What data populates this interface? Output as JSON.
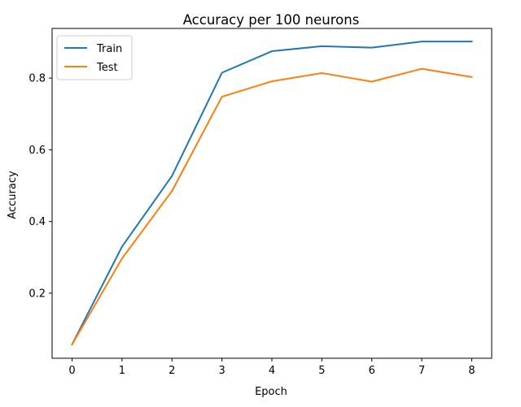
{
  "chart_data": {
    "type": "line",
    "title": "Accuracy per 100 neurons",
    "xlabel": "Epoch",
    "ylabel": "Accuracy",
    "x": [
      0,
      1,
      2,
      3,
      4,
      5,
      6,
      7,
      8
    ],
    "xticks": [
      "0",
      "1",
      "2",
      "3",
      "4",
      "5",
      "6",
      "7",
      "8"
    ],
    "yticks": [
      "0.2",
      "0.4",
      "0.6",
      "0.8"
    ],
    "xlim": [
      -0.4,
      8.4
    ],
    "ylim": [
      0.0185,
      0.9385
    ],
    "grid": false,
    "legend_position": "top-left",
    "series": [
      {
        "name": "Train",
        "color": "#1f77b4",
        "values": [
          0.057,
          0.33,
          0.527,
          0.815,
          0.875,
          0.889,
          0.885,
          0.902,
          0.902
        ]
      },
      {
        "name": "Test",
        "color": "#ff7f0e",
        "values": [
          0.057,
          0.297,
          0.485,
          0.748,
          0.791,
          0.814,
          0.79,
          0.826,
          0.803
        ]
      }
    ]
  }
}
